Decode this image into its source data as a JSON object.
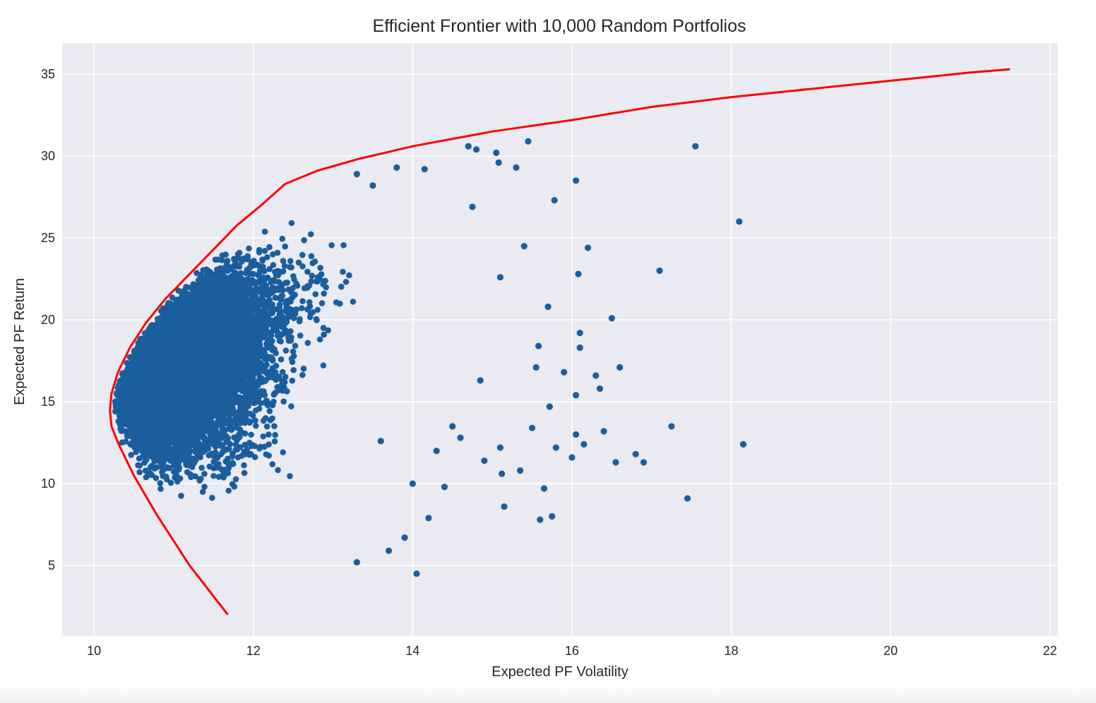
{
  "chart_data": {
    "type": "scatter",
    "title": "Efficient Frontier with 10,000 Random Portfolios",
    "xlabel": "Expected PF Volatility",
    "ylabel": "Expected PF Return",
    "xlim": [
      9.6,
      22.1
    ],
    "ylim": [
      0.7,
      36.9
    ],
    "xticks": [
      10,
      12,
      14,
      16,
      18,
      20,
      22
    ],
    "yticks": [
      5,
      10,
      15,
      20,
      25,
      30,
      35
    ],
    "grid": true,
    "legend": "none",
    "colors": {
      "background": "#eaeaf2",
      "grid": "#ffffff",
      "points": "#1b5e9e",
      "frontier": "#ff0000"
    },
    "scatter_summary": {
      "n_points": 10000,
      "dense_region_volatility_range": [
        10.3,
        13.5
      ],
      "dense_region_return_range": [
        9,
        27
      ]
    },
    "series": [
      {
        "type": "line",
        "x": [
          11.68,
          11.2,
          10.8,
          10.5,
          10.3,
          10.22,
          10.2,
          10.22,
          10.3,
          10.45,
          10.65,
          10.9,
          11.2,
          11.5,
          11.8,
          12.1,
          12.4,
          12.8,
          13.3,
          14.0,
          15.0,
          16.0,
          17.0,
          18.0,
          19.0,
          20.0,
          21.0,
          21.5
        ],
        "y": [
          2.0,
          5.0,
          8.0,
          10.5,
          12.5,
          13.5,
          14.5,
          15.5,
          16.8,
          18.3,
          19.8,
          21.3,
          22.8,
          24.3,
          25.8,
          27.0,
          28.3,
          29.1,
          29.8,
          30.6,
          31.5,
          32.2,
          33.0,
          33.6,
          34.1,
          34.6,
          35.1,
          35.3
        ]
      },
      {
        "type": "scatter",
        "x": [
          17.55,
          18.1,
          18.15,
          17.1,
          17.25,
          17.45,
          16.9,
          16.8,
          16.6,
          16.55,
          16.5,
          16.4,
          16.35,
          16.3,
          16.2,
          16.15,
          16.1,
          16.1,
          16.08,
          16.05,
          16.05,
          16.05,
          16.0,
          15.9,
          15.8,
          15.78,
          15.75,
          15.72,
          15.7,
          15.65,
          15.6,
          15.58,
          15.55,
          15.5,
          15.45,
          15.4,
          15.35,
          15.3,
          15.15,
          15.12,
          15.1,
          15.1,
          15.08,
          15.05,
          14.9,
          14.85,
          14.8,
          14.75,
          14.7,
          14.6,
          14.5,
          14.4,
          14.3,
          14.2,
          14.15,
          14.05,
          14.0,
          13.9,
          13.8,
          13.7,
          13.6,
          13.5,
          13.3,
          13.3
        ],
        "y": [
          30.6,
          26.0,
          12.4,
          23.0,
          13.5,
          9.1,
          11.3,
          11.8,
          17.1,
          11.3,
          20.1,
          13.2,
          15.8,
          16.6,
          24.4,
          12.4,
          19.2,
          18.3,
          22.8,
          28.5,
          13.0,
          15.4,
          11.6,
          16.8,
          12.2,
          27.3,
          8.0,
          14.7,
          20.8,
          9.7,
          7.8,
          18.4,
          17.1,
          13.4,
          30.9,
          24.5,
          10.8,
          29.3,
          8.6,
          10.6,
          22.6,
          12.2,
          29.6,
          30.2,
          11.4,
          16.3,
          30.4,
          26.9,
          30.6,
          12.8,
          13.5,
          9.8,
          12.0,
          7.9,
          29.2,
          4.5,
          10.0,
          6.7,
          29.3,
          5.9,
          12.6,
          28.2,
          5.2,
          28.9
        ]
      }
    ]
  }
}
